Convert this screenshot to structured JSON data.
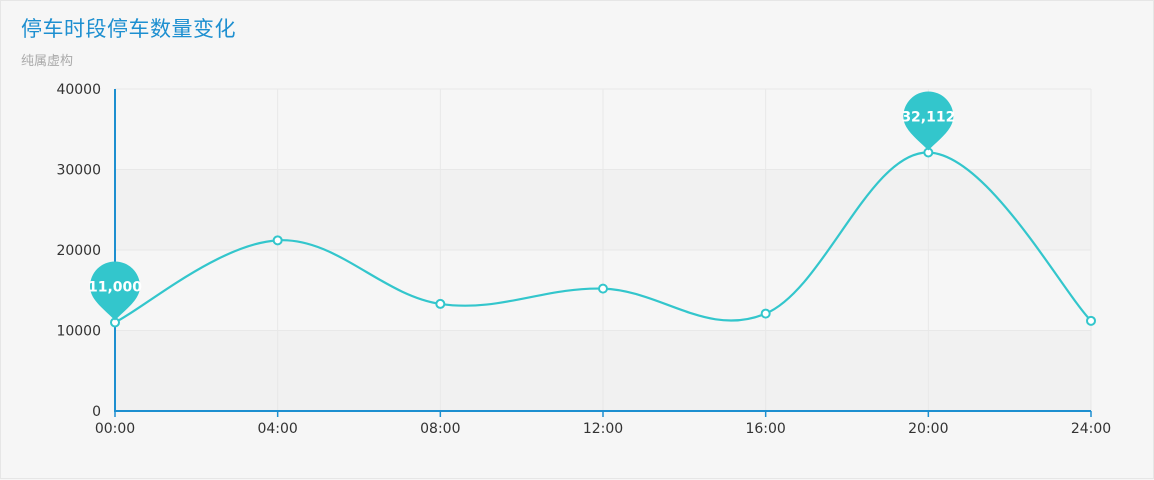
{
  "title": "停车时段停车数量变化",
  "subtitle": "纯属虚构",
  "chart_data": {
    "type": "line",
    "smooth": true,
    "categories": [
      "00:00",
      "04:00",
      "08:00",
      "12:00",
      "16:00",
      "20:00",
      "24:00"
    ],
    "series": [
      {
        "values": [
          11000,
          21200,
          13300,
          15200,
          12100,
          32112,
          11200
        ]
      }
    ],
    "y_ticks": [
      "0",
      "10000",
      "20000",
      "30000",
      "40000"
    ],
    "ylim": [
      0,
      40000
    ],
    "markers": [
      {
        "type": "min",
        "index": 0,
        "label": "11,000"
      },
      {
        "type": "max",
        "index": 5,
        "label": "32,112"
      }
    ],
    "grid": true,
    "colors": {
      "line": "#33c6cc",
      "axis": "#1d8fd0",
      "band": "#f1f1f1",
      "gridline": "#e8e8e8",
      "pin": "#33c6cc"
    }
  }
}
